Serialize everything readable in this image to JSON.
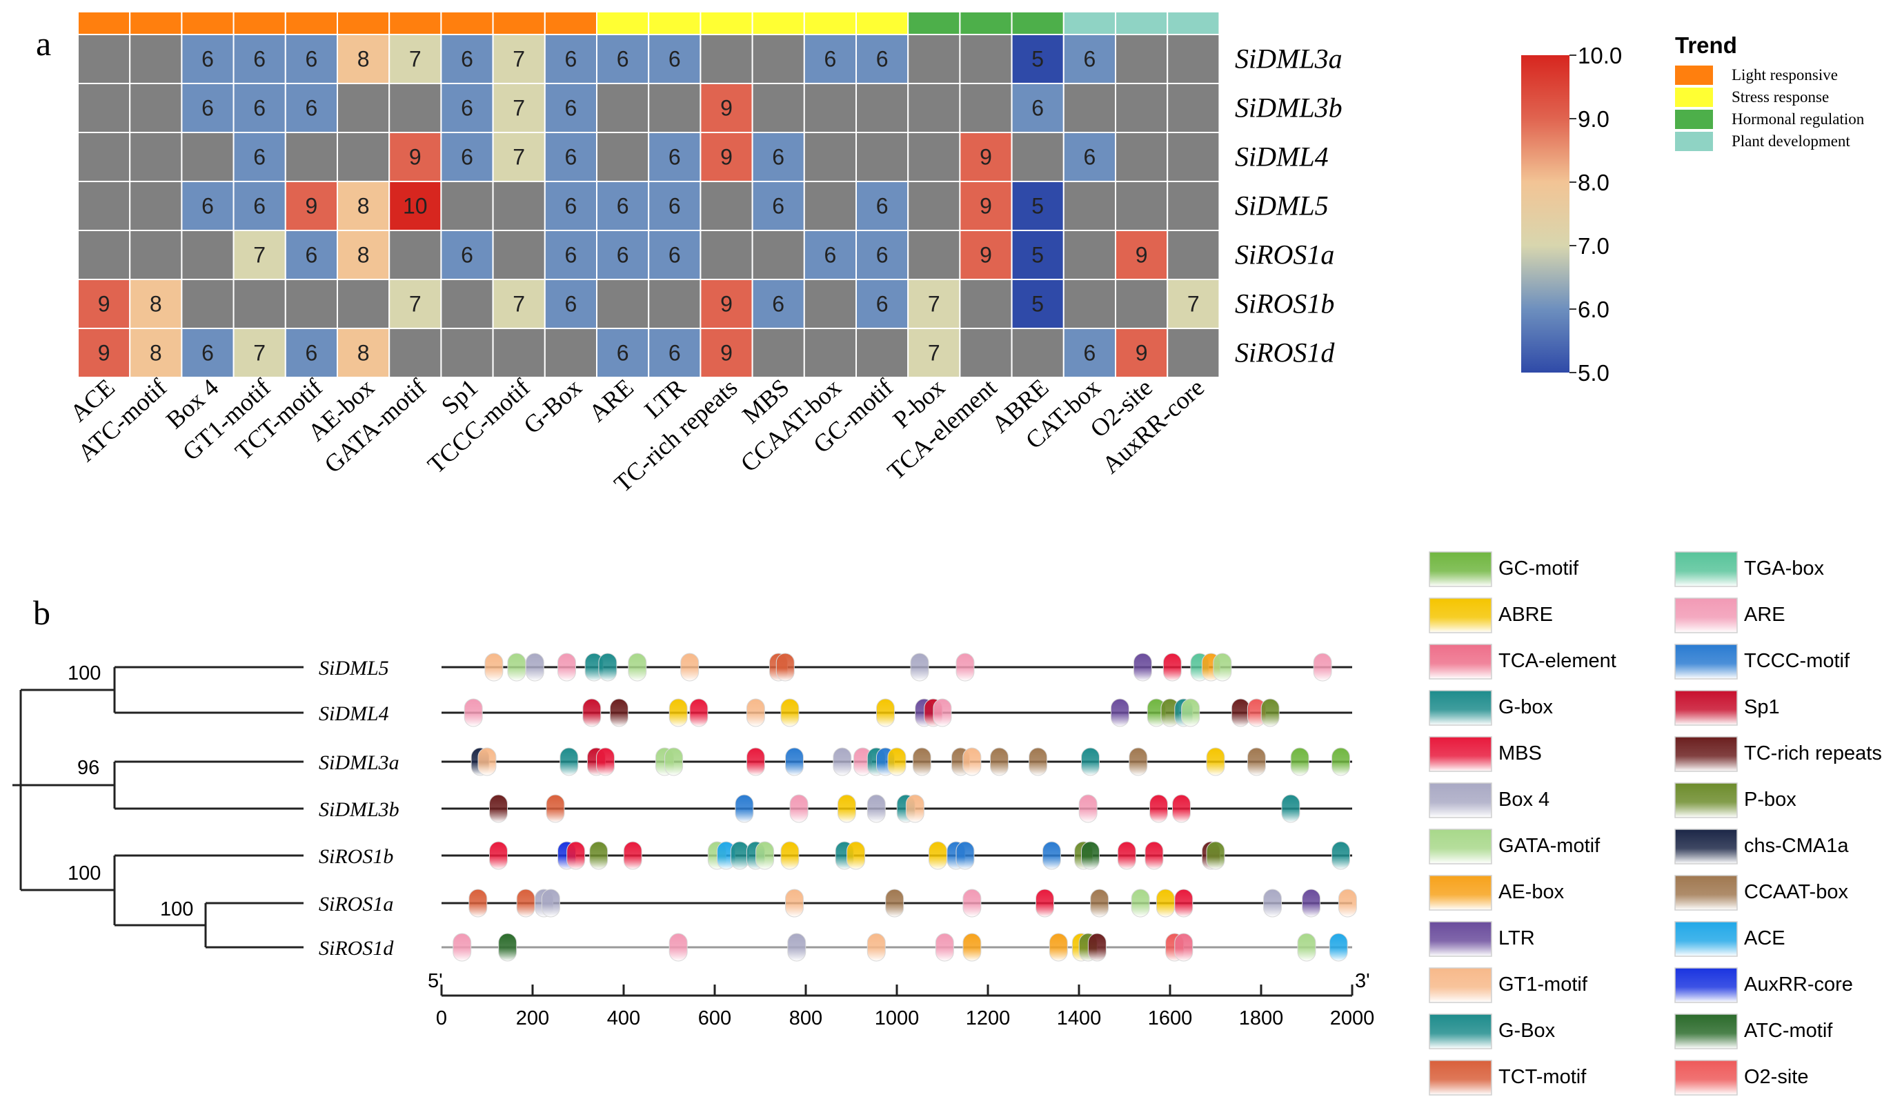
{
  "chart_data": [
    {
      "panel": "a",
      "type": "heatmap",
      "rows": [
        "SiDML3a",
        "SiDML3b",
        "SiDML4",
        "SiDML5",
        "SiROS1a",
        "SiROS1b",
        "SiROS1d"
      ],
      "columns": [
        "ACE",
        "ATC-motif",
        "Box 4",
        "GT1-motif",
        "TCT-motif",
        "AE-box",
        "GATA-motif",
        "Sp1",
        "TCCC-motif",
        "G-Box",
        "ARE",
        "LTR",
        "TC-rich repeats",
        "MBS",
        "CCAAT-box",
        "GC-motif",
        "P-box",
        "TCA-element",
        "ABRE",
        "CAT-box",
        "O2-site",
        "AuxRR-core"
      ],
      "column_groups": [
        {
          "name": "Light responsive",
          "span": 10,
          "color": "#ff7f0e"
        },
        {
          "name": "Stress response",
          "span": 6,
          "color": "#ffff33"
        },
        {
          "name": "Hormonal regulation",
          "span": 3,
          "color": "#4daf4a"
        },
        {
          "name": "Plant development",
          "span": 3,
          "color": "#8fd3c4"
        }
      ],
      "values": [
        [
          null,
          null,
          6,
          6,
          6,
          8,
          7,
          6,
          7,
          6,
          6,
          6,
          null,
          null,
          6,
          6,
          null,
          null,
          5,
          6,
          null,
          null
        ],
        [
          null,
          null,
          6,
          6,
          6,
          null,
          null,
          6,
          7,
          6,
          null,
          null,
          9,
          null,
          null,
          null,
          null,
          null,
          6,
          null,
          null,
          null
        ],
        [
          null,
          null,
          null,
          6,
          null,
          null,
          9,
          6,
          7,
          6,
          null,
          6,
          9,
          6,
          null,
          null,
          null,
          9,
          null,
          6,
          null,
          null
        ],
        [
          null,
          null,
          6,
          6,
          9,
          8,
          10,
          null,
          null,
          6,
          6,
          6,
          null,
          6,
          null,
          6,
          null,
          9,
          5,
          null,
          null,
          null
        ],
        [
          null,
          null,
          null,
          7,
          6,
          8,
          null,
          6,
          null,
          6,
          6,
          6,
          null,
          null,
          6,
          6,
          null,
          9,
          5,
          null,
          9,
          null
        ],
        [
          9,
          8,
          null,
          null,
          null,
          null,
          7,
          null,
          7,
          6,
          null,
          null,
          9,
          6,
          null,
          6,
          7,
          null,
          5,
          null,
          null,
          7
        ],
        [
          9,
          8,
          6,
          7,
          6,
          8,
          null,
          null,
          null,
          null,
          6,
          6,
          9,
          null,
          null,
          null,
          7,
          null,
          null,
          6,
          9,
          null
        ]
      ],
      "colorbar": {
        "min": 5.0,
        "max": 10.0,
        "ticks": [
          "10.0",
          "9.0",
          "8.0",
          "7.0",
          "6.0",
          "5.0"
        ]
      },
      "legend_title": "Trend",
      "legend": [
        "Light responsive",
        "Stress response",
        "Hormonal regulation",
        "Plant development"
      ],
      "empty_cell_color": "#808080"
    },
    {
      "panel": "b",
      "type": "scatter",
      "tree_support": [
        "100",
        "96",
        "100",
        "100"
      ],
      "genes": [
        "SiDML5",
        "SiDML4",
        "SiDML3a",
        "SiDML3b",
        "SiROS1b",
        "SiROS1a",
        "SiROS1d"
      ],
      "xlim": [
        0,
        2000
      ],
      "x_ticks": [
        "0",
        "200",
        "400",
        "600",
        "800",
        "1000",
        "1200",
        "1400",
        "1600",
        "1800",
        "2000"
      ],
      "axis_start_label": "5'",
      "axis_end_label": "3'",
      "motif_legend": [
        {
          "name": "GC-motif",
          "color": "#70b640"
        },
        {
          "name": "TGA-box",
          "color": "#58c49a"
        },
        {
          "name": "ABRE",
          "color": "#f5c500"
        },
        {
          "name": "ARE",
          "color": "#f29ab5"
        },
        {
          "name": "TCA-element",
          "color": "#ee6f8a"
        },
        {
          "name": "TCCC-motif",
          "color": "#2a7bd1"
        },
        {
          "name": "G-box",
          "color": "#1e8c8c"
        },
        {
          "name": "Sp1",
          "color": "#c8102e"
        },
        {
          "name": "MBS",
          "color": "#e8193c"
        },
        {
          "name": "TC-rich repeats",
          "color": "#6b1f1f"
        },
        {
          "name": "Box 4",
          "color": "#a9a9c4"
        },
        {
          "name": "P-box",
          "color": "#6d8c2c"
        },
        {
          "name": "GATA-motif",
          "color": "#a8d88a"
        },
        {
          "name": "chs-CMA1a",
          "color": "#1c2747"
        },
        {
          "name": "AE-box",
          "color": "#f7a21b"
        },
        {
          "name": "CCAAT-box",
          "color": "#a07850"
        },
        {
          "name": "LTR",
          "color": "#6a4c9c"
        },
        {
          "name": "ACE",
          "color": "#22a8e8"
        },
        {
          "name": "GT1-motif",
          "color": "#f7b98a"
        },
        {
          "name": "AuxRR-core",
          "color": "#1a34e0"
        },
        {
          "name": "G-Box",
          "color": "#9ea58f"
        },
        {
          "name": "ATC-motif",
          "color": "#2b6b2b"
        },
        {
          "name": "TCT-motif",
          "color": "#d9603b"
        },
        {
          "name": "O2-site",
          "color": "#ee5a5a"
        }
      ],
      "motif_positions": [
        {
          "gene": "SiDML5",
          "sites": [
            [
              115,
              "GT1-motif"
            ],
            [
              165,
              "GATA-motif"
            ],
            [
              205,
              "Box 4"
            ],
            [
              275,
              "ARE"
            ],
            [
              335,
              "G-box"
            ],
            [
              365,
              "G-Box"
            ],
            [
              430,
              "GATA-motif"
            ],
            [
              545,
              "GT1-motif"
            ],
            [
              740,
              "TCT-motif"
            ],
            [
              755,
              "TCT-motif"
            ],
            [
              1050,
              "Box 4"
            ],
            [
              1150,
              "ARE"
            ],
            [
              1540,
              "LTR"
            ],
            [
              1605,
              "MBS"
            ],
            [
              1665,
              "TGA-box"
            ],
            [
              1690,
              "AE-box"
            ],
            [
              1715,
              "GATA-motif"
            ],
            [
              1935,
              "ARE"
            ]
          ]
        },
        {
          "gene": "SiDML4",
          "sites": [
            [
              70,
              "ARE"
            ],
            [
              330,
              "Sp1"
            ],
            [
              390,
              "TC-rich repeats"
            ],
            [
              520,
              "ABRE"
            ],
            [
              565,
              "MBS"
            ],
            [
              690,
              "GT1-motif"
            ],
            [
              765,
              "ABRE"
            ],
            [
              975,
              "ABRE"
            ],
            [
              1060,
              "LTR"
            ],
            [
              1080,
              "Sp1"
            ],
            [
              1100,
              "ARE"
            ],
            [
              1490,
              "LTR"
            ],
            [
              1570,
              "GC-motif"
            ],
            [
              1600,
              "P-box"
            ],
            [
              1630,
              "G-box"
            ],
            [
              1645,
              "GATA-motif"
            ],
            [
              1755,
              "TC-rich repeats"
            ],
            [
              1790,
              "O2-site"
            ],
            [
              1820,
              "P-box"
            ]
          ]
        },
        {
          "gene": "SiDML3a",
          "sites": [
            [
              85,
              "chs-CMA1a"
            ],
            [
              100,
              "GT1-motif"
            ],
            [
              280,
              "G-box"
            ],
            [
              340,
              "Sp1"
            ],
            [
              360,
              "MBS"
            ],
            [
              490,
              "GATA-motif"
            ],
            [
              510,
              "GATA-motif"
            ],
            [
              690,
              "MBS"
            ],
            [
              775,
              "TCCC-motif"
            ],
            [
              880,
              "Box 4"
            ],
            [
              925,
              "ARE"
            ],
            [
              955,
              "G-box"
            ],
            [
              975,
              "TCCC-motif"
            ],
            [
              1000,
              "ABRE"
            ],
            [
              1055,
              "CCAAT-box"
            ],
            [
              1140,
              "CCAAT-box"
            ],
            [
              1165,
              "GT1-motif"
            ],
            [
              1225,
              "CCAAT-box"
            ],
            [
              1310,
              "CCAAT-box"
            ],
            [
              1425,
              "G-Box"
            ],
            [
              1530,
              "CCAAT-box"
            ],
            [
              1700,
              "ABRE"
            ],
            [
              1790,
              "CCAAT-box"
            ],
            [
              1885,
              "GC-motif"
            ],
            [
              1975,
              "GC-motif"
            ]
          ]
        },
        {
          "gene": "SiDML3b",
          "sites": [
            [
              125,
              "TC-rich repeats"
            ],
            [
              250,
              "TCT-motif"
            ],
            [
              665,
              "TCCC-motif"
            ],
            [
              785,
              "ARE"
            ],
            [
              890,
              "ABRE"
            ],
            [
              955,
              "Box 4"
            ],
            [
              1020,
              "G-box"
            ],
            [
              1040,
              "GT1-motif"
            ],
            [
              1420,
              "ARE"
            ],
            [
              1575,
              "MBS"
            ],
            [
              1625,
              "MBS"
            ],
            [
              1865,
              "G-box"
            ]
          ]
        },
        {
          "gene": "SiROS1b",
          "sites": [
            [
              125,
              "MBS"
            ],
            [
              275,
              "AuxRR-core"
            ],
            [
              295,
              "MBS"
            ],
            [
              345,
              "P-box"
            ],
            [
              420,
              "MBS"
            ],
            [
              605,
              "GATA-motif"
            ],
            [
              625,
              "ACE"
            ],
            [
              655,
              "G-Box"
            ],
            [
              690,
              "G-Box"
            ],
            [
              710,
              "GATA-motif"
            ],
            [
              765,
              "ABRE"
            ],
            [
              885,
              "G-box"
            ],
            [
              910,
              "ABRE"
            ],
            [
              1090,
              "ABRE"
            ],
            [
              1130,
              "TCCC-motif"
            ],
            [
              1150,
              "TCCC-motif"
            ],
            [
              1340,
              "TCCC-motif"
            ],
            [
              1410,
              "P-box"
            ],
            [
              1425,
              "ATC-motif"
            ],
            [
              1505,
              "MBS"
            ],
            [
              1565,
              "MBS"
            ],
            [
              1690,
              "TC-rich repeats"
            ],
            [
              1700,
              "P-box"
            ],
            [
              1975,
              "G-box"
            ]
          ]
        },
        {
          "gene": "SiROS1a",
          "sites": [
            [
              80,
              "TCT-motif"
            ],
            [
              185,
              "TCT-motif"
            ],
            [
              225,
              "Box 4"
            ],
            [
              240,
              "Box 4"
            ],
            [
              775,
              "GT1-motif"
            ],
            [
              995,
              "CCAAT-box"
            ],
            [
              1165,
              "ARE"
            ],
            [
              1325,
              "MBS"
            ],
            [
              1445,
              "CCAAT-box"
            ],
            [
              1535,
              "GATA-motif"
            ],
            [
              1590,
              "ABRE"
            ],
            [
              1630,
              "MBS"
            ],
            [
              1825,
              "Box 4"
            ],
            [
              1910,
              "LTR"
            ],
            [
              1990,
              "GT1-motif"
            ]
          ]
        },
        {
          "gene": "SiROS1d",
          "sites": [
            [
              45,
              "ARE"
            ],
            [
              145,
              "ATC-motif"
            ],
            [
              520,
              "ARE"
            ],
            [
              780,
              "Box 4"
            ],
            [
              955,
              "GT1-motif"
            ],
            [
              1105,
              "ARE"
            ],
            [
              1165,
              "AE-box"
            ],
            [
              1355,
              "AE-box"
            ],
            [
              1405,
              "ABRE"
            ],
            [
              1420,
              "P-box"
            ],
            [
              1440,
              "TC-rich repeats"
            ],
            [
              1610,
              "O2-site"
            ],
            [
              1630,
              "TCA-element"
            ],
            [
              1900,
              "GATA-motif"
            ],
            [
              1970,
              "ACE"
            ]
          ]
        }
      ]
    }
  ]
}
